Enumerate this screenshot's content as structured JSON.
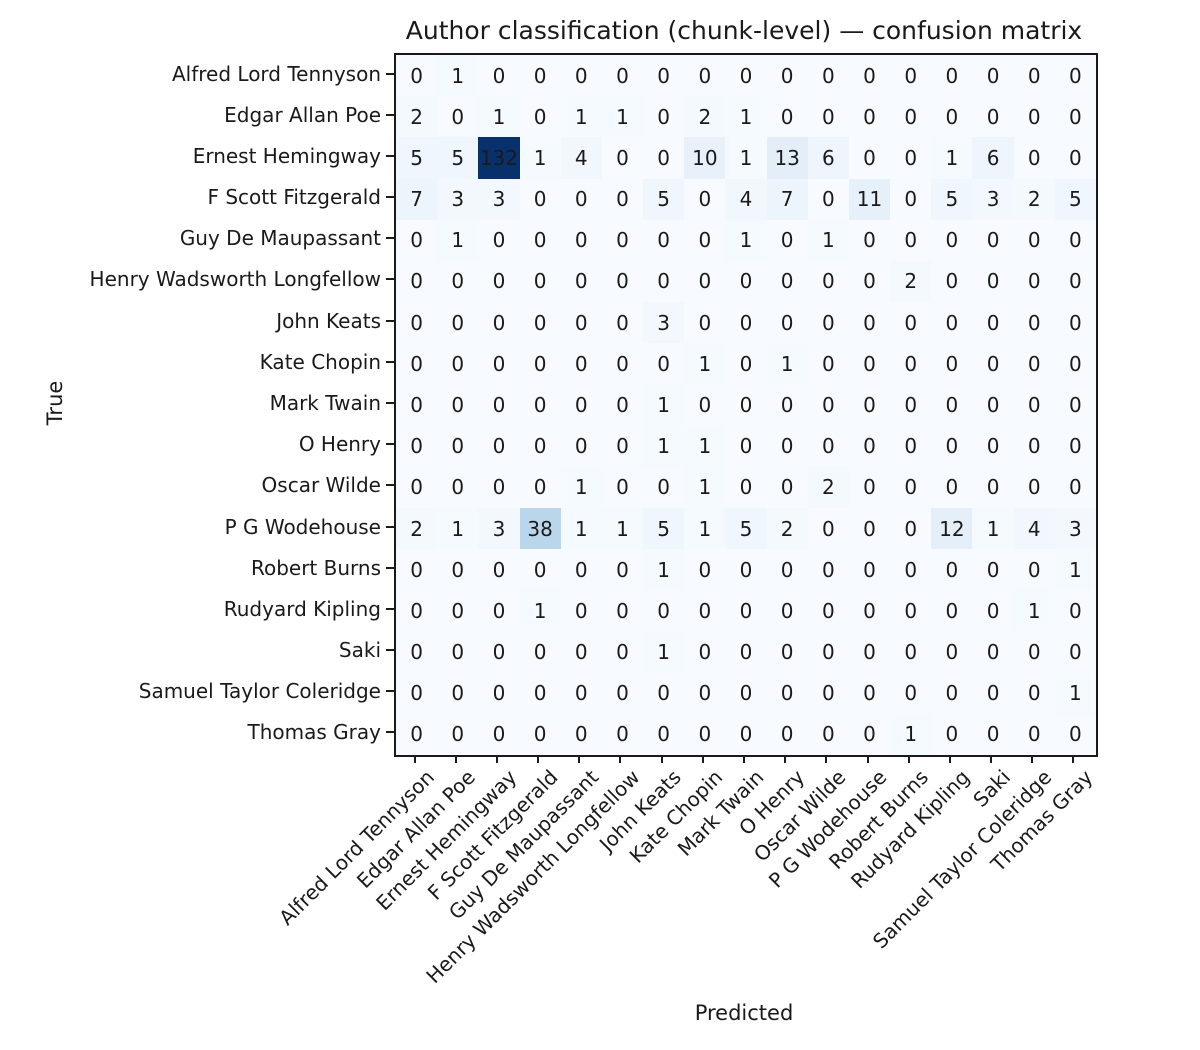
{
  "chart_data": {
    "type": "heatmap",
    "title": "Author classification (chunk-level) — confusion matrix",
    "xlabel": "Predicted",
    "ylabel": "True",
    "x_categories": [
      "Alfred Lord Tennyson",
      "Edgar Allan Poe",
      "Ernest Hemingway",
      "F Scott Fitzgerald",
      "Guy De Maupassant",
      "Henry Wadsworth Longfellow",
      "John Keats",
      "Kate Chopin",
      "Mark Twain",
      "O Henry",
      "Oscar Wilde",
      "P G Wodehouse",
      "Robert Burns",
      "Rudyard Kipling",
      "Saki",
      "Samuel Taylor Coleridge",
      "Thomas Gray"
    ],
    "y_categories": [
      "Alfred Lord Tennyson",
      "Edgar Allan Poe",
      "Ernest Hemingway",
      "F Scott Fitzgerald",
      "Guy De Maupassant",
      "Henry Wadsworth Longfellow",
      "John Keats",
      "Kate Chopin",
      "Mark Twain",
      "O Henry",
      "Oscar Wilde",
      "P G Wodehouse",
      "Robert Burns",
      "Rudyard Kipling",
      "Saki",
      "Samuel Taylor Coleridge",
      "Thomas Gray"
    ],
    "matrix": [
      [
        0,
        1,
        0,
        0,
        0,
        0,
        0,
        0,
        0,
        0,
        0,
        0,
        0,
        0,
        0,
        0,
        0
      ],
      [
        2,
        0,
        1,
        0,
        1,
        1,
        0,
        2,
        1,
        0,
        0,
        0,
        0,
        0,
        0,
        0,
        0
      ],
      [
        5,
        5,
        132,
        1,
        4,
        0,
        0,
        10,
        1,
        13,
        6,
        0,
        0,
        1,
        6,
        0,
        0
      ],
      [
        7,
        3,
        3,
        0,
        0,
        0,
        5,
        0,
        4,
        7,
        0,
        11,
        0,
        5,
        3,
        2,
        5
      ],
      [
        0,
        1,
        0,
        0,
        0,
        0,
        0,
        0,
        1,
        0,
        1,
        0,
        0,
        0,
        0,
        0,
        0
      ],
      [
        0,
        0,
        0,
        0,
        0,
        0,
        0,
        0,
        0,
        0,
        0,
        0,
        2,
        0,
        0,
        0,
        0
      ],
      [
        0,
        0,
        0,
        0,
        0,
        0,
        3,
        0,
        0,
        0,
        0,
        0,
        0,
        0,
        0,
        0,
        0
      ],
      [
        0,
        0,
        0,
        0,
        0,
        0,
        0,
        1,
        0,
        1,
        0,
        0,
        0,
        0,
        0,
        0,
        0
      ],
      [
        0,
        0,
        0,
        0,
        0,
        0,
        1,
        0,
        0,
        0,
        0,
        0,
        0,
        0,
        0,
        0,
        0
      ],
      [
        0,
        0,
        0,
        0,
        0,
        0,
        1,
        1,
        0,
        0,
        0,
        0,
        0,
        0,
        0,
        0,
        0
      ],
      [
        0,
        0,
        0,
        0,
        1,
        0,
        0,
        1,
        0,
        0,
        2,
        0,
        0,
        0,
        0,
        0,
        0
      ],
      [
        2,
        1,
        3,
        38,
        1,
        1,
        5,
        1,
        5,
        2,
        0,
        0,
        0,
        12,
        1,
        4,
        3
      ],
      [
        0,
        0,
        0,
        0,
        0,
        0,
        1,
        0,
        0,
        0,
        0,
        0,
        0,
        0,
        0,
        0,
        1
      ],
      [
        0,
        0,
        0,
        1,
        0,
        0,
        0,
        0,
        0,
        0,
        0,
        0,
        0,
        0,
        0,
        1,
        0
      ],
      [
        0,
        0,
        0,
        0,
        0,
        0,
        1,
        0,
        0,
        0,
        0,
        0,
        0,
        0,
        0,
        0,
        0
      ],
      [
        0,
        0,
        0,
        0,
        0,
        0,
        0,
        0,
        0,
        0,
        0,
        0,
        0,
        0,
        0,
        0,
        1
      ],
      [
        0,
        0,
        0,
        0,
        0,
        0,
        0,
        0,
        0,
        0,
        0,
        0,
        1,
        0,
        0,
        0,
        0
      ]
    ],
    "vmin": 0,
    "vmax": 132,
    "colormap": "Blues",
    "colormap_stops": [
      [
        0.0,
        "#f7fbff"
      ],
      [
        0.125,
        "#deebf7"
      ],
      [
        0.25,
        "#c6dbef"
      ],
      [
        0.375,
        "#9ecae1"
      ],
      [
        0.5,
        "#6baed6"
      ],
      [
        0.625,
        "#4292c6"
      ],
      [
        0.75,
        "#2171b5"
      ],
      [
        0.875,
        "#08519c"
      ],
      [
        1.0,
        "#08306b"
      ]
    ],
    "grid": false,
    "legend": "none",
    "cell_text_color": "#1a1a1a",
    "spine_color": "#1a1a1a"
  }
}
